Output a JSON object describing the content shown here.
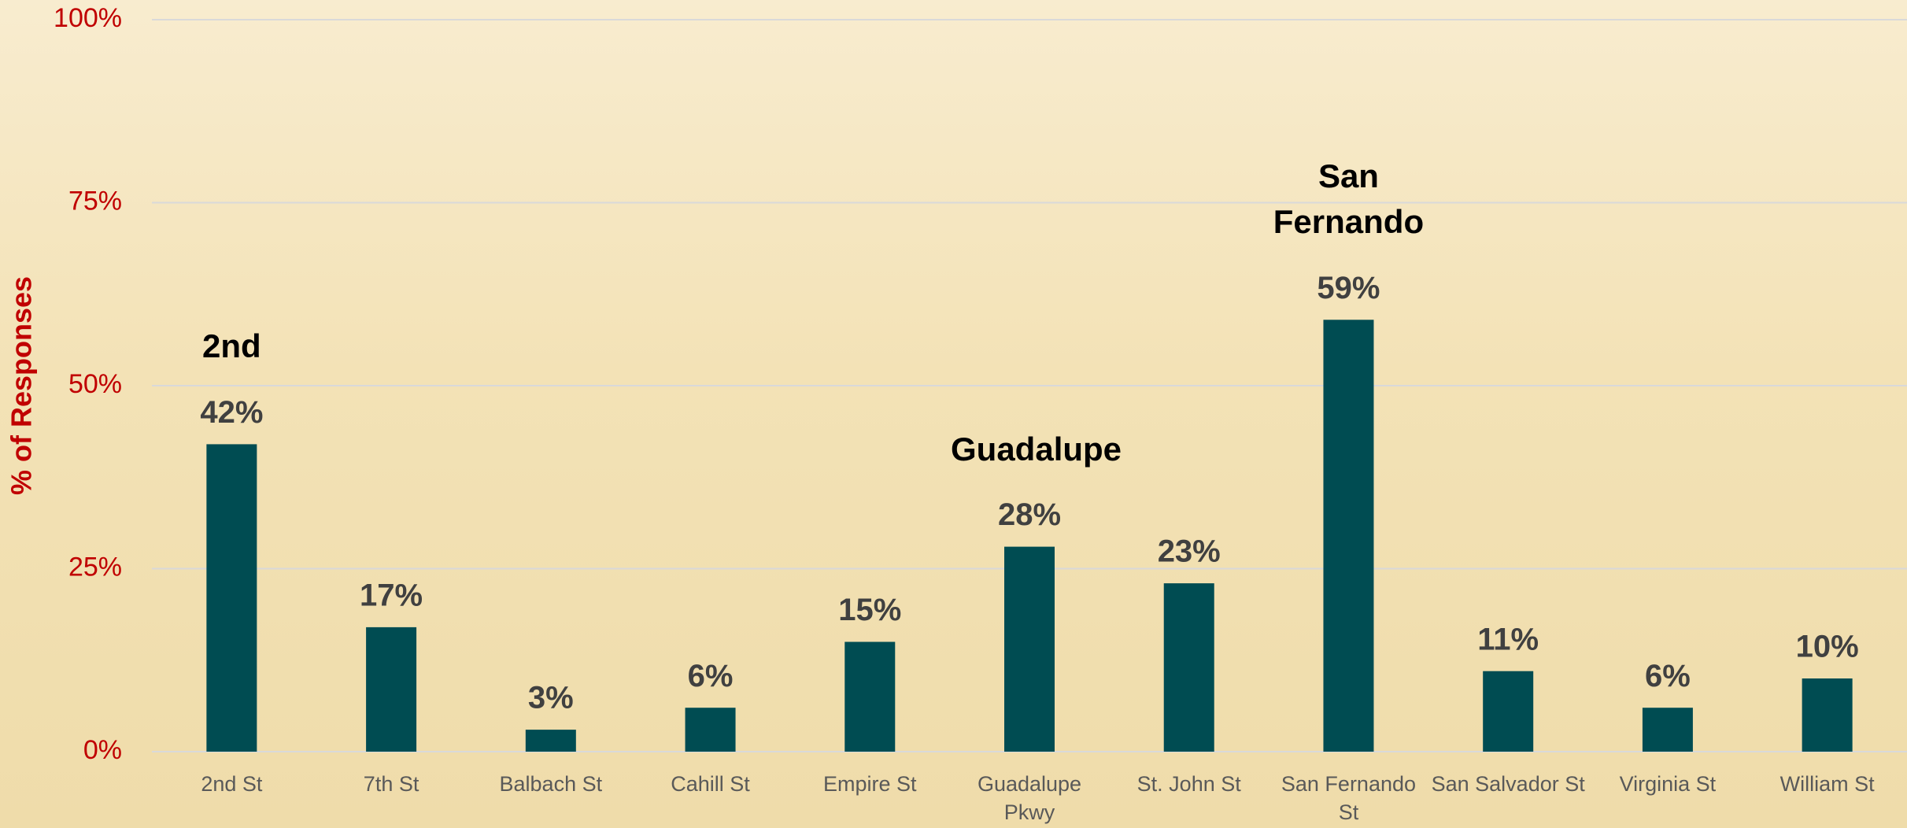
{
  "chart_data": {
    "type": "bar",
    "y_label": "% of Responses",
    "categories": [
      "2nd St",
      "7th St",
      "Balbach St",
      "Cahill St",
      "Empire St",
      "Guadalupe Pkwy",
      "St. John St",
      "San Fernando St",
      "San Salvador St",
      "Virginia St",
      "William St"
    ],
    "values": [
      42,
      17,
      3,
      6,
      15,
      28,
      23,
      59,
      11,
      6,
      10
    ],
    "value_labels": [
      "42%",
      "17%",
      "3%",
      "6%",
      "15%",
      "28%",
      "23%",
      "59%",
      "11%",
      "6%",
      "10%"
    ],
    "color": "#004c52",
    "ylim": [
      0,
      100
    ],
    "yticks": [
      {
        "value": 0,
        "label": "0%"
      },
      {
        "value": 25,
        "label": "25%"
      },
      {
        "value": 50,
        "label": "50%"
      },
      {
        "value": 75,
        "label": "75%"
      },
      {
        "value": 100,
        "label": "100%"
      }
    ],
    "grid": true,
    "annotations": [
      {
        "text": "2nd",
        "at": "2nd St"
      },
      {
        "text": "Guadalupe",
        "at": "Guadalupe Pkwy"
      },
      {
        "text": "San Fernando",
        "at": "San Fernando St"
      }
    ]
  }
}
